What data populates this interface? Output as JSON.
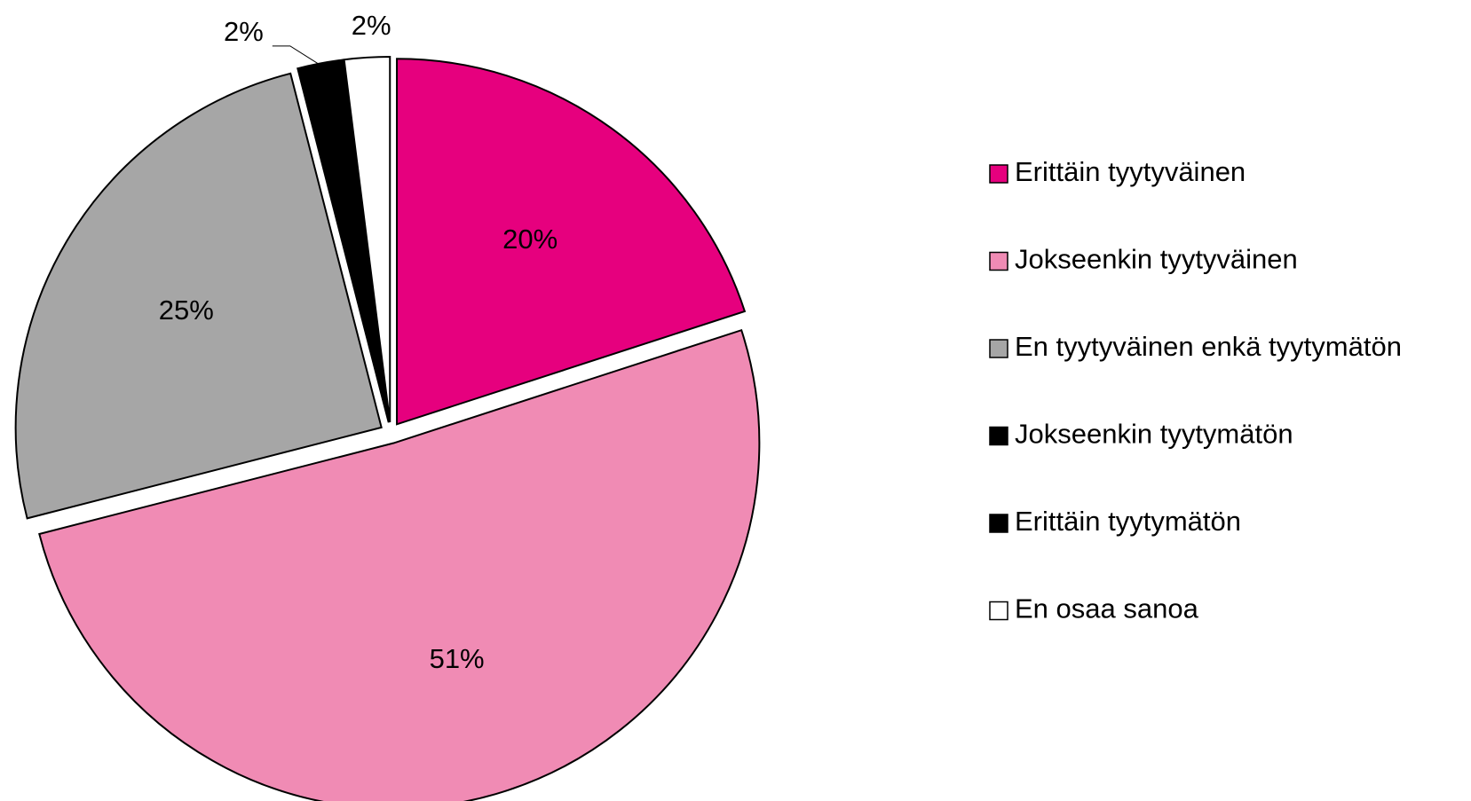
{
  "chart_data": {
    "type": "pie",
    "categories": [
      "Erittäin tyytyväinen",
      "Jokseenkin tyytyväinen",
      "En tyytyväinen enkä tyytymätön",
      "Jokseenkin tyytymätön",
      "Erittäin tyytymätön",
      "En osaa sanoa"
    ],
    "values": [
      20,
      51,
      25,
      2,
      0,
      2
    ],
    "value_labels": [
      "20%",
      "51%",
      "25%",
      "2%",
      null,
      "2%"
    ],
    "colors": [
      "#e6007e",
      "#f08bb4",
      "#a6a6a6",
      "#000000",
      "#000000",
      "#ffffff"
    ],
    "legend": "right"
  }
}
